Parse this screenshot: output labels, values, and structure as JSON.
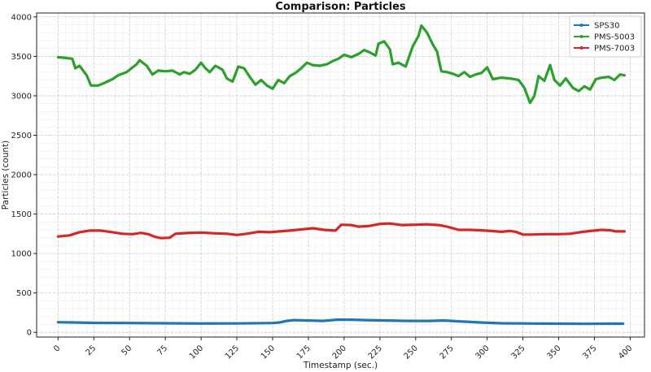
{
  "chart_data": {
    "type": "line",
    "title": "Comparison: Particles",
    "xlabel": "Timestamp (sec.)",
    "ylabel": "Particles (count)",
    "xlim": [
      -15,
      410
    ],
    "ylim": [
      -60,
      4050
    ],
    "xticks": [
      0,
      25,
      50,
      75,
      100,
      125,
      150,
      175,
      200,
      225,
      250,
      275,
      300,
      325,
      350,
      375,
      400
    ],
    "yticks": [
      0,
      500,
      1000,
      1500,
      2000,
      2500,
      3000,
      3500,
      4000
    ],
    "grid": true,
    "legend_position": "top-right",
    "series": [
      {
        "name": "SPS30",
        "color": "#1f77b4",
        "points": [
          [
            0,
            128
          ],
          [
            10,
            125
          ],
          [
            25,
            120
          ],
          [
            50,
            118
          ],
          [
            75,
            115
          ],
          [
            100,
            112
          ],
          [
            125,
            113
          ],
          [
            150,
            118
          ],
          [
            155,
            125
          ],
          [
            160,
            145
          ],
          [
            165,
            155
          ],
          [
            175,
            150
          ],
          [
            185,
            145
          ],
          [
            195,
            160
          ],
          [
            205,
            160
          ],
          [
            215,
            155
          ],
          [
            230,
            150
          ],
          [
            245,
            145
          ],
          [
            260,
            145
          ],
          [
            270,
            150
          ],
          [
            280,
            140
          ],
          [
            295,
            125
          ],
          [
            310,
            115
          ],
          [
            330,
            112
          ],
          [
            350,
            110
          ],
          [
            370,
            108
          ],
          [
            385,
            110
          ],
          [
            395,
            110
          ]
        ]
      },
      {
        "name": "PMS-5003",
        "color": "#2ca02c",
        "points": [
          [
            0,
            3490
          ],
          [
            5,
            3480
          ],
          [
            10,
            3470
          ],
          [
            12,
            3350
          ],
          [
            15,
            3380
          ],
          [
            20,
            3260
          ],
          [
            23,
            3130
          ],
          [
            28,
            3130
          ],
          [
            32,
            3160
          ],
          [
            38,
            3210
          ],
          [
            42,
            3260
          ],
          [
            48,
            3300
          ],
          [
            52,
            3360
          ],
          [
            55,
            3400
          ],
          [
            57,
            3450
          ],
          [
            62,
            3380
          ],
          [
            66,
            3270
          ],
          [
            70,
            3320
          ],
          [
            75,
            3310
          ],
          [
            80,
            3320
          ],
          [
            85,
            3270
          ],
          [
            88,
            3300
          ],
          [
            92,
            3280
          ],
          [
            96,
            3330
          ],
          [
            100,
            3420
          ],
          [
            103,
            3350
          ],
          [
            106,
            3300
          ],
          [
            110,
            3380
          ],
          [
            115,
            3330
          ],
          [
            118,
            3220
          ],
          [
            122,
            3180
          ],
          [
            126,
            3370
          ],
          [
            130,
            3350
          ],
          [
            134,
            3240
          ],
          [
            138,
            3140
          ],
          [
            142,
            3200
          ],
          [
            146,
            3130
          ],
          [
            150,
            3090
          ],
          [
            154,
            3200
          ],
          [
            158,
            3160
          ],
          [
            162,
            3250
          ],
          [
            166,
            3290
          ],
          [
            170,
            3350
          ],
          [
            174,
            3420
          ],
          [
            178,
            3390
          ],
          [
            183,
            3380
          ],
          [
            188,
            3400
          ],
          [
            192,
            3440
          ],
          [
            196,
            3470
          ],
          [
            200,
            3520
          ],
          [
            205,
            3490
          ],
          [
            210,
            3530
          ],
          [
            214,
            3580
          ],
          [
            218,
            3550
          ],
          [
            222,
            3510
          ],
          [
            224,
            3660
          ],
          [
            228,
            3690
          ],
          [
            232,
            3590
          ],
          [
            234,
            3400
          ],
          [
            238,
            3420
          ],
          [
            243,
            3370
          ],
          [
            248,
            3630
          ],
          [
            252,
            3760
          ],
          [
            254,
            3890
          ],
          [
            258,
            3800
          ],
          [
            262,
            3650
          ],
          [
            265,
            3560
          ],
          [
            268,
            3310
          ],
          [
            272,
            3300
          ],
          [
            276,
            3280
          ],
          [
            280,
            3250
          ],
          [
            284,
            3300
          ],
          [
            288,
            3240
          ],
          [
            292,
            3270
          ],
          [
            296,
            3290
          ],
          [
            300,
            3360
          ],
          [
            304,
            3210
          ],
          [
            310,
            3230
          ],
          [
            316,
            3220
          ],
          [
            322,
            3200
          ],
          [
            326,
            3100
          ],
          [
            330,
            2910
          ],
          [
            333,
            3000
          ],
          [
            336,
            3250
          ],
          [
            340,
            3190
          ],
          [
            344,
            3390
          ],
          [
            347,
            3200
          ],
          [
            351,
            3130
          ],
          [
            355,
            3220
          ],
          [
            360,
            3100
          ],
          [
            364,
            3060
          ],
          [
            368,
            3120
          ],
          [
            372,
            3080
          ],
          [
            376,
            3210
          ],
          [
            380,
            3230
          ],
          [
            385,
            3240
          ],
          [
            389,
            3200
          ],
          [
            393,
            3270
          ],
          [
            396,
            3260
          ]
        ]
      },
      {
        "name": "PMS-7003",
        "color": "#d62728",
        "points": [
          [
            0,
            1215
          ],
          [
            8,
            1230
          ],
          [
            15,
            1270
          ],
          [
            22,
            1290
          ],
          [
            30,
            1290
          ],
          [
            38,
            1270
          ],
          [
            45,
            1250
          ],
          [
            52,
            1245
          ],
          [
            58,
            1262
          ],
          [
            63,
            1245
          ],
          [
            68,
            1210
          ],
          [
            72,
            1195
          ],
          [
            78,
            1200
          ],
          [
            82,
            1250
          ],
          [
            90,
            1260
          ],
          [
            100,
            1265
          ],
          [
            110,
            1255
          ],
          [
            118,
            1250
          ],
          [
            125,
            1235
          ],
          [
            132,
            1250
          ],
          [
            140,
            1275
          ],
          [
            148,
            1270
          ],
          [
            155,
            1280
          ],
          [
            162,
            1290
          ],
          [
            170,
            1305
          ],
          [
            178,
            1320
          ],
          [
            186,
            1300
          ],
          [
            194,
            1290
          ],
          [
            198,
            1365
          ],
          [
            205,
            1360
          ],
          [
            210,
            1340
          ],
          [
            218,
            1350
          ],
          [
            225,
            1375
          ],
          [
            232,
            1380
          ],
          [
            240,
            1360
          ],
          [
            250,
            1365
          ],
          [
            258,
            1370
          ],
          [
            266,
            1360
          ],
          [
            272,
            1340
          ],
          [
            280,
            1300
          ],
          [
            288,
            1300
          ],
          [
            295,
            1295
          ],
          [
            303,
            1285
          ],
          [
            310,
            1275
          ],
          [
            316,
            1285
          ],
          [
            320,
            1275
          ],
          [
            325,
            1240
          ],
          [
            330,
            1240
          ],
          [
            340,
            1245
          ],
          [
            350,
            1245
          ],
          [
            358,
            1250
          ],
          [
            365,
            1270
          ],
          [
            372,
            1285
          ],
          [
            380,
            1300
          ],
          [
            386,
            1295
          ],
          [
            390,
            1280
          ],
          [
            396,
            1280
          ]
        ]
      }
    ]
  }
}
